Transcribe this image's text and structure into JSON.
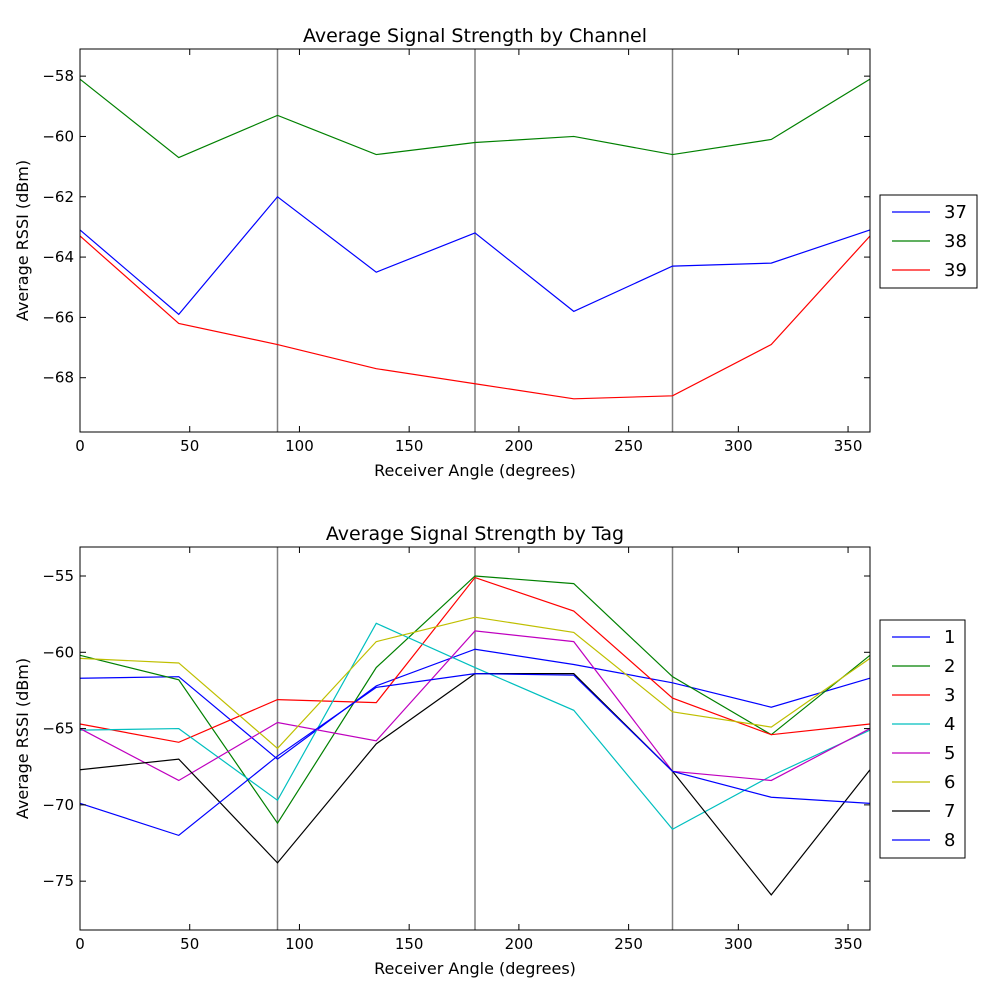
{
  "chart_data": [
    {
      "type": "line",
      "title": "Average Signal Strength by Channel",
      "xlabel": "Receiver Angle (degrees)",
      "ylabel": "Average RSSI (dBm)",
      "xlim": [
        0,
        360
      ],
      "ylim": [
        -69.8,
        -57.1
      ],
      "xticks": [
        0,
        50,
        100,
        150,
        200,
        250,
        300,
        350
      ],
      "yticks": [
        -68,
        -66,
        -64,
        -62,
        -60,
        -58
      ],
      "vlines": [
        90,
        180,
        270
      ],
      "legend": "right",
      "x": [
        0,
        45,
        90,
        135,
        180,
        225,
        270,
        315,
        360
      ],
      "series": [
        {
          "name": "37",
          "color": "#0000ff",
          "values": [
            -63.1,
            -65.9,
            -62.0,
            -64.5,
            -63.2,
            -65.8,
            -64.3,
            -64.2,
            -63.1
          ]
        },
        {
          "name": "38",
          "color": "#008000",
          "values": [
            -58.1,
            -60.7,
            -59.3,
            -60.6,
            -60.2,
            -60.0,
            -60.6,
            -60.1,
            -58.1
          ]
        },
        {
          "name": "39",
          "color": "#ff0000",
          "values": [
            -63.3,
            -66.2,
            -66.9,
            -67.7,
            -68.2,
            -68.7,
            -68.6,
            -66.9,
            -63.3
          ]
        }
      ]
    },
    {
      "type": "line",
      "title": "Average Signal Strength by Tag",
      "xlabel": "Receiver Angle (degrees)",
      "ylabel": "Average RSSI (dBm)",
      "xlim": [
        0,
        360
      ],
      "ylim": [
        -78.2,
        -53.1
      ],
      "xticks": [
        0,
        50,
        100,
        150,
        200,
        250,
        300,
        350
      ],
      "yticks": [
        -75,
        -70,
        -65,
        -60,
        -55
      ],
      "vlines": [
        90,
        180,
        270
      ],
      "legend": "right",
      "x": [
        0,
        45,
        90,
        135,
        180,
        225,
        270,
        315,
        360
      ],
      "series": [
        {
          "name": "1",
          "color": "#0000ff",
          "values": [
            -61.7,
            -61.6,
            -67.0,
            -62.2,
            -59.8,
            -60.8,
            -62.0,
            -63.6,
            -61.7
          ]
        },
        {
          "name": "2",
          "color": "#008000",
          "values": [
            -60.2,
            -61.8,
            -71.2,
            -61.0,
            -55.0,
            -55.5,
            -61.6,
            -65.4,
            -60.2
          ]
        },
        {
          "name": "3",
          "color": "#ff0000",
          "values": [
            -64.7,
            -65.9,
            -63.1,
            -63.3,
            -55.1,
            -57.3,
            -63.0,
            -65.4,
            -64.7
          ]
        },
        {
          "name": "4",
          "color": "#00bfbf",
          "values": [
            -65.1,
            -65.0,
            -69.7,
            -58.1,
            -61.0,
            -63.8,
            -71.6,
            -68.1,
            -65.1
          ]
        },
        {
          "name": "5",
          "color": "#bf00bf",
          "values": [
            -65.0,
            -68.4,
            -64.6,
            -65.8,
            -58.6,
            -59.3,
            -67.8,
            -68.4,
            -65.0
          ]
        },
        {
          "name": "6",
          "color": "#bfbf00",
          "values": [
            -60.4,
            -60.7,
            -66.3,
            -59.3,
            -57.7,
            -58.7,
            -63.9,
            -64.9,
            -60.4
          ]
        },
        {
          "name": "7",
          "color": "#000000",
          "values": [
            -67.7,
            -67.0,
            -73.8,
            -66.0,
            -61.4,
            -61.4,
            -67.8,
            -75.9,
            -67.7
          ]
        },
        {
          "name": "8",
          "color": "#0000ff",
          "values": [
            -69.9,
            -72.0,
            -66.8,
            -62.3,
            -61.4,
            -61.5,
            -67.8,
            -69.5,
            -69.9
          ]
        }
      ]
    }
  ]
}
